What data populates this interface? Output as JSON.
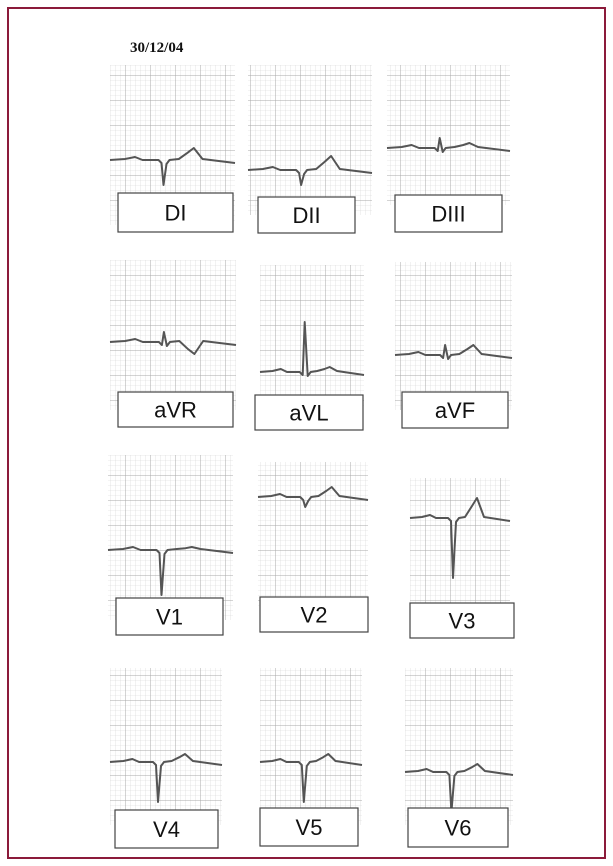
{
  "header": {
    "date": "30/12/04"
  },
  "leads": [
    "DI",
    "DII",
    "DIII",
    "aVR",
    "aVL",
    "aVF",
    "V1",
    "V2",
    "V3",
    "V4",
    "V5",
    "V6"
  ]
}
